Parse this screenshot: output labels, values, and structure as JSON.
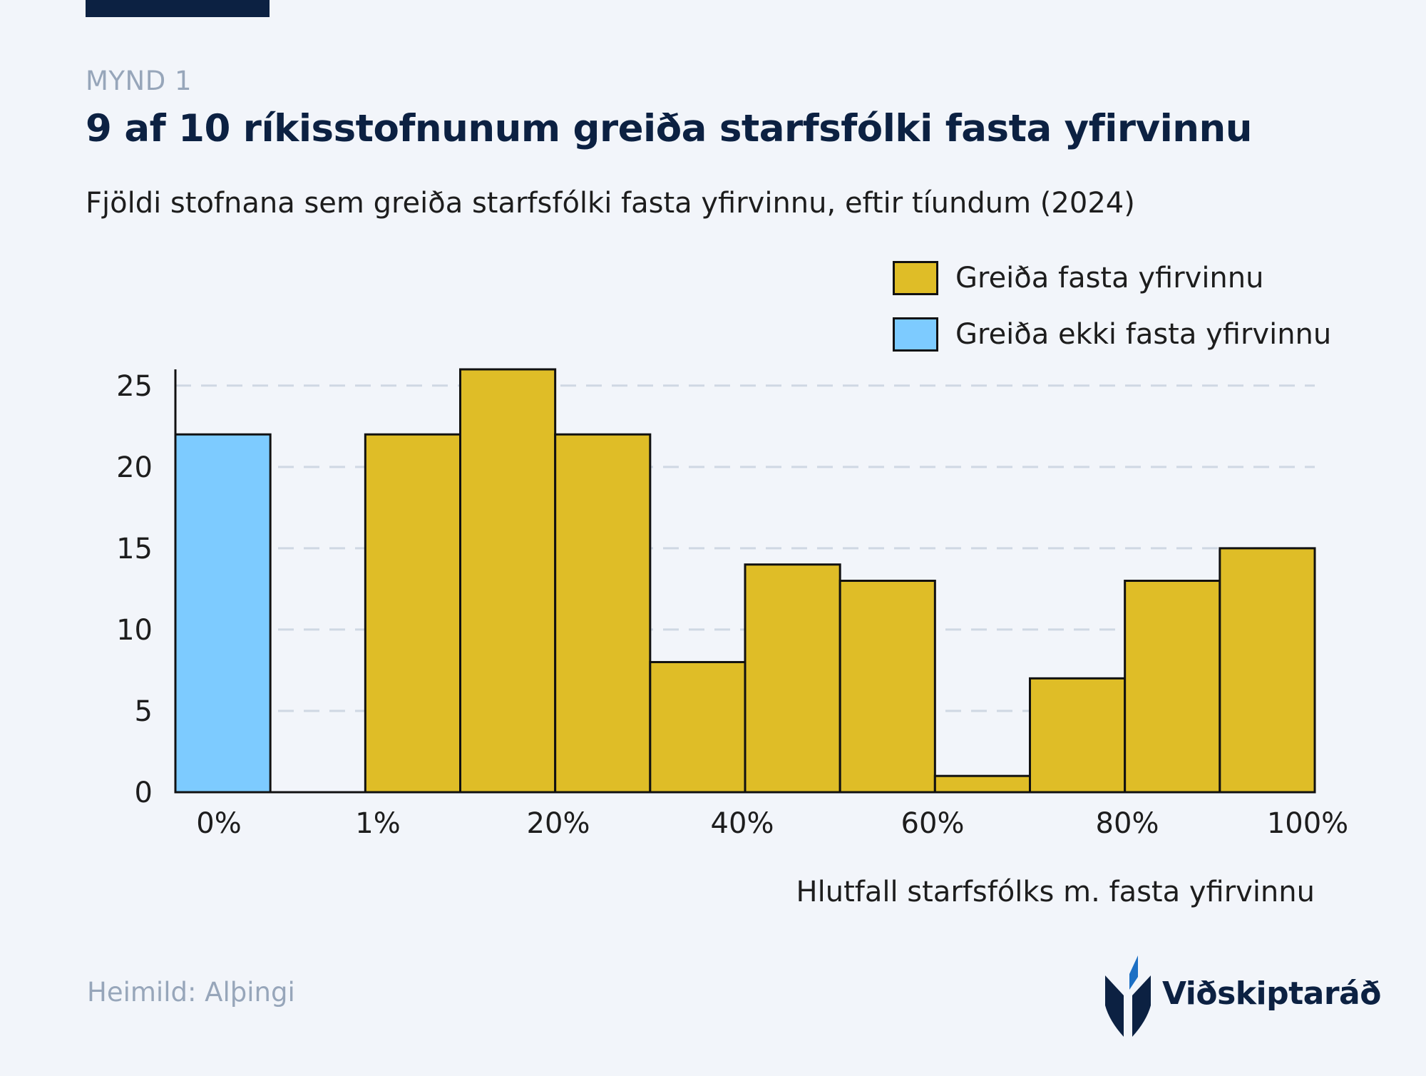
{
  "kicker": "MYND 1",
  "title": "9 af 10 ríkisstofnunum greiða starfsfólki fasta yfirvinnu",
  "subtitle": "Fjöldi stofnana sem greiða starfsfólki fasta yfirvinnu, eftir tíundum (2024)",
  "source": "Heimild: Alþingi",
  "logo_text": "Viðskiptaráð",
  "colors": {
    "pays": "#dfbd27",
    "not_pays": "#7dcbff",
    "navy": "#0c2142",
    "grid": "#cfd8e3",
    "logo_blue": "#1c6fc4"
  },
  "legend": [
    {
      "label": "Greiða fasta yfirvinnu",
      "color": "#dfbd27"
    },
    {
      "label": "Greiða ekki fasta yfirvinnu",
      "color": "#7dcbff"
    }
  ],
  "chart_data": {
    "type": "bar",
    "title": "9 af 10 ríkisstofnunum greiða starfsfólki fasta yfirvinnu",
    "xlabel": "Hlutfall starfsfólks m. fasta yfirvinnu",
    "ylabel": "",
    "ylim": [
      0,
      26
    ],
    "yticks": [
      0,
      5,
      10,
      15,
      20,
      25
    ],
    "xtick_labels": [
      "0%",
      "1%",
      "20%",
      "40%",
      "60%",
      "80%",
      "100%"
    ],
    "bins": [
      {
        "series": "Greiða ekki fasta yfirvinnu",
        "value": 22
      },
      {
        "series": "",
        "value": 0
      },
      {
        "series": "Greiða fasta yfirvinnu",
        "value": 22
      },
      {
        "series": "Greiða fasta yfirvinnu",
        "value": 26
      },
      {
        "series": "Greiða fasta yfirvinnu",
        "value": 22
      },
      {
        "series": "Greiða fasta yfirvinnu",
        "value": 8
      },
      {
        "series": "Greiða fasta yfirvinnu",
        "value": 14
      },
      {
        "series": "Greiða fasta yfirvinnu",
        "value": 13
      },
      {
        "series": "Greiða fasta yfirvinnu",
        "value": 1
      },
      {
        "series": "Greiða fasta yfirvinnu",
        "value": 7
      },
      {
        "series": "Greiða fasta yfirvinnu",
        "value": 13
      },
      {
        "series": "Greiða fasta yfirvinnu",
        "value": 15
      }
    ],
    "legend_position": "top-right",
    "grid": true
  }
}
